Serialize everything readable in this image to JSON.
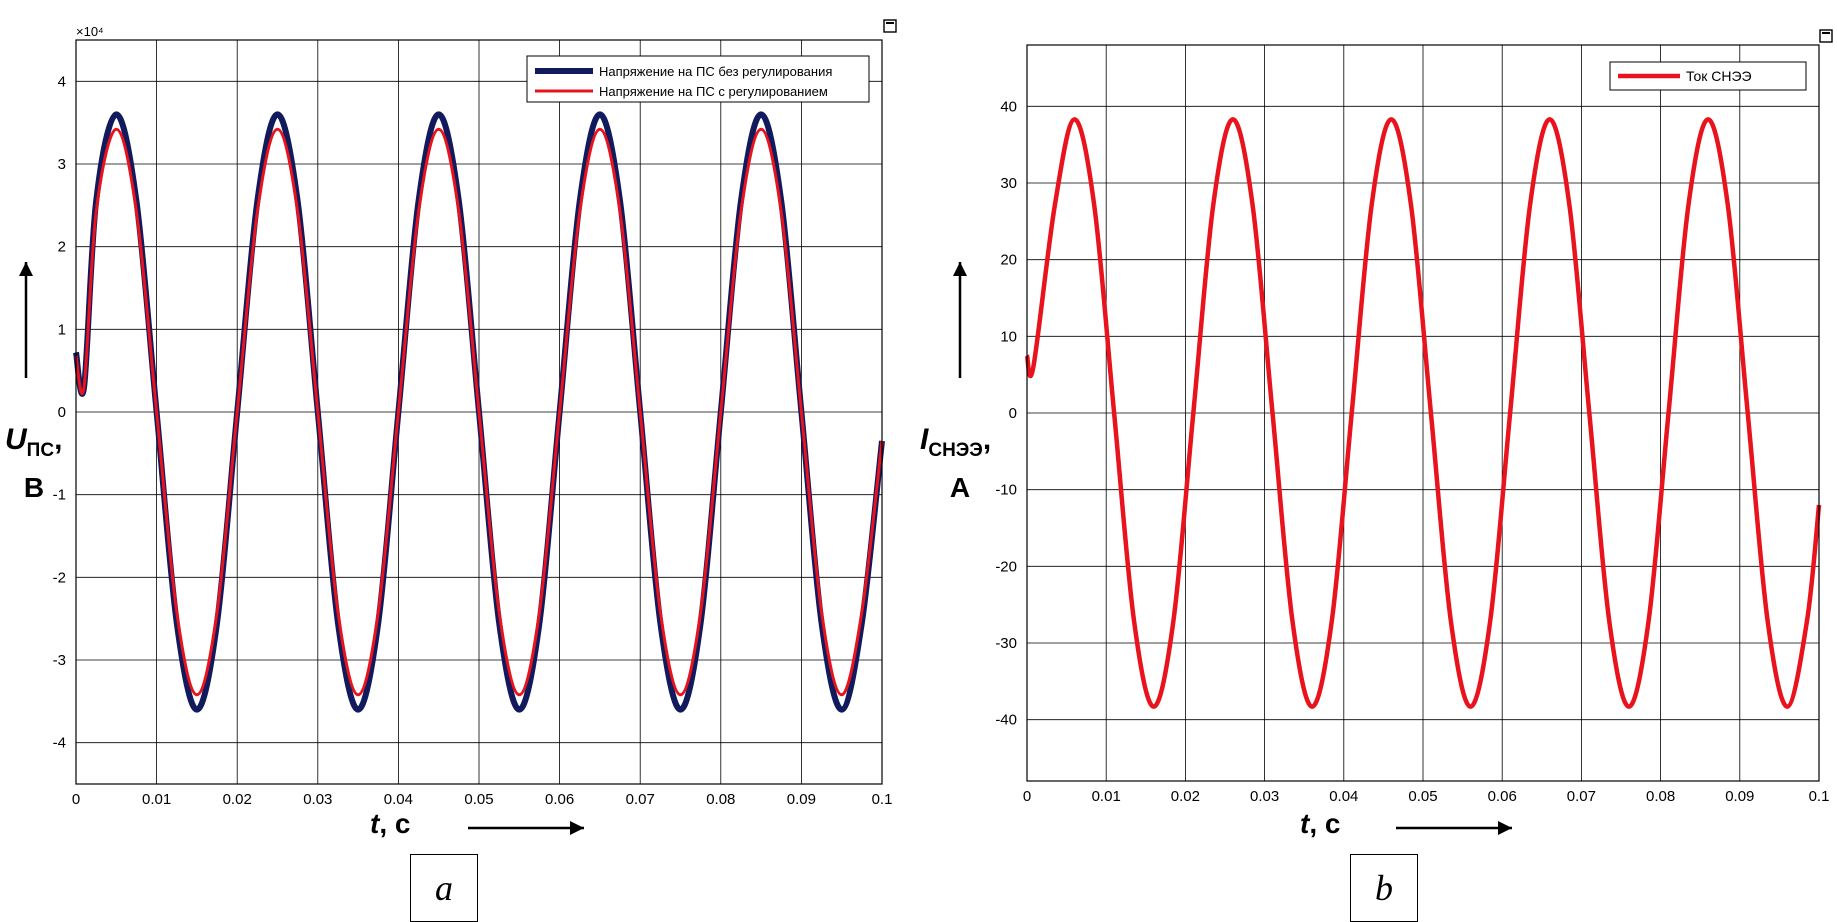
{
  "charts": [
    {
      "id": "a",
      "panel_label": "a",
      "exponent_label": "×10⁴",
      "ylabel_main": "U",
      "ylabel_sub": "ПС",
      "ylabel_tail": ",",
      "ylabel_unit": "В",
      "xlabel_var": "t",
      "xlabel_unit": ", с",
      "colors": {
        "series_0": "#101a5c",
        "series_1": "#e8131c"
      }
    },
    {
      "id": "b",
      "panel_label": "b",
      "ylabel_main": "I",
      "ylabel_sub": "СНЭЭ",
      "ylabel_tail": ",",
      "ylabel_unit": "А",
      "xlabel_var": "t",
      "xlabel_unit": ", с",
      "colors": {
        "series_0": "#e8131c"
      }
    }
  ],
  "chart_data": [
    {
      "type": "line",
      "title": "",
      "xlabel": "t, с",
      "ylabel": "UПС, В",
      "y_multiplier": "×10⁴",
      "xlim": [
        0,
        0.1
      ],
      "ylim": [
        -4.5,
        4.5
      ],
      "xticks": [
        0,
        0.01,
        0.02,
        0.03,
        0.04,
        0.05,
        0.06,
        0.07,
        0.08,
        0.09,
        0.1
      ],
      "xtick_labels": [
        "0",
        "0.01",
        "0.02",
        "0.03",
        "0.04",
        "0.05",
        "0.06",
        "0.07",
        "0.08",
        "0.09",
        "0.1"
      ],
      "yticks": [
        -4,
        -3,
        -2,
        -1,
        0,
        1,
        2,
        3,
        4
      ],
      "ytick_labels": [
        "-4",
        "-3",
        "-2",
        "-1",
        "0",
        "1",
        "2",
        "3",
        "4"
      ],
      "grid": true,
      "legend_position": "top-right",
      "series": [
        {
          "name": "Напряжение на ПС без регулирования",
          "color": "#101a5c",
          "frequency_hz": 50,
          "amplitude": 3.6,
          "peaks_x": [
            0.005,
            0.025,
            0.045,
            0.065,
            0.085
          ],
          "troughs_x": [
            0.015,
            0.035,
            0.055,
            0.075,
            0.095
          ],
          "x": [
            0,
            0.001,
            0.0025,
            0.005,
            0.0075,
            0.01,
            0.0125,
            0.015,
            0.0175,
            0.02,
            0.0225,
            0.025,
            0.0275,
            0.03,
            0.0325,
            0.035,
            0.0375,
            0.04,
            0.0425,
            0.045,
            0.0475,
            0.05,
            0.0525,
            0.055,
            0.0575,
            0.06,
            0.0625,
            0.065,
            0.0675,
            0.07,
            0.0725,
            0.075,
            0.0775,
            0.08,
            0.0825,
            0.085,
            0.0875,
            0.09,
            0.0925,
            0.095,
            0.0975,
            0.1
          ],
          "values": [
            0.72,
            0.3,
            2.55,
            3.6,
            2.55,
            0,
            -2.55,
            -3.6,
            -2.55,
            0,
            2.55,
            3.6,
            2.55,
            0,
            -2.55,
            -3.6,
            -2.55,
            0,
            2.55,
            3.6,
            2.55,
            0,
            -2.55,
            -3.6,
            -2.55,
            0,
            2.55,
            3.6,
            2.55,
            0,
            -2.55,
            -3.6,
            -2.55,
            0,
            2.55,
            3.6,
            2.55,
            0,
            -2.55,
            -3.6,
            -2.55,
            -0.35
          ]
        },
        {
          "name": "Напряжение на ПС с регулированием",
          "color": "#e8131c",
          "frequency_hz": 50,
          "amplitude": 3.42,
          "peaks_x": [
            0.005,
            0.025,
            0.045,
            0.065,
            0.085
          ],
          "troughs_x": [
            0.015,
            0.035,
            0.055,
            0.075,
            0.095
          ],
          "x": [
            0,
            0.001,
            0.0025,
            0.005,
            0.0075,
            0.01,
            0.0125,
            0.015,
            0.0175,
            0.02,
            0.0225,
            0.025,
            0.0275,
            0.03,
            0.0325,
            0.035,
            0.0375,
            0.04,
            0.0425,
            0.045,
            0.0475,
            0.05,
            0.0525,
            0.055,
            0.0575,
            0.06,
            0.0625,
            0.065,
            0.0675,
            0.07,
            0.0725,
            0.075,
            0.0775,
            0.08,
            0.0825,
            0.085,
            0.0875,
            0.09,
            0.0925,
            0.095,
            0.0975,
            0.1
          ],
          "values": [
            0.68,
            0.3,
            2.42,
            3.42,
            2.42,
            0,
            -2.42,
            -3.42,
            -2.42,
            0,
            2.42,
            3.42,
            2.42,
            0,
            -2.42,
            -3.42,
            -2.42,
            0,
            2.42,
            3.42,
            2.42,
            0,
            -2.42,
            -3.42,
            -2.42,
            0,
            2.42,
            3.42,
            2.42,
            0,
            -2.42,
            -3.42,
            -2.42,
            0,
            2.42,
            3.42,
            2.42,
            0,
            -2.42,
            -3.42,
            -2.42,
            -0.35
          ]
        }
      ]
    },
    {
      "type": "line",
      "title": "",
      "xlabel": "t, с",
      "ylabel": "IСНЭЭ, А",
      "xlim": [
        0,
        0.1
      ],
      "ylim": [
        -48,
        48
      ],
      "xticks": [
        0,
        0.01,
        0.02,
        0.03,
        0.04,
        0.05,
        0.06,
        0.07,
        0.08,
        0.09,
        0.1
      ],
      "xtick_labels": [
        "0",
        "0.01",
        "0.02",
        "0.03",
        "0.04",
        "0.05",
        "0.06",
        "0.07",
        "0.08",
        "0.09",
        "0.1"
      ],
      "yticks": [
        -40,
        -30,
        -20,
        -10,
        0,
        10,
        20,
        30,
        40
      ],
      "ytick_labels": [
        "-40",
        "-30",
        "-20",
        "-10",
        "0",
        "10",
        "20",
        "30",
        "40"
      ],
      "grid": true,
      "legend_position": "top-right",
      "series": [
        {
          "name": "Ток СНЭЭ",
          "color": "#e8131c",
          "frequency_hz": 50,
          "amplitude": 38.3,
          "peaks_x": [
            0.006,
            0.026,
            0.046,
            0.066,
            0.086
          ],
          "troughs_x": [
            0.016,
            0.036,
            0.056,
            0.076,
            0.096
          ],
          "x": [
            0,
            0.0008,
            0.0035,
            0.006,
            0.0085,
            0.011,
            0.0135,
            0.016,
            0.0185,
            0.021,
            0.0235,
            0.026,
            0.0285,
            0.031,
            0.0335,
            0.036,
            0.0385,
            0.041,
            0.0435,
            0.046,
            0.0485,
            0.051,
            0.0535,
            0.056,
            0.0585,
            0.061,
            0.0635,
            0.066,
            0.0685,
            0.071,
            0.0735,
            0.076,
            0.0785,
            0.081,
            0.0835,
            0.086,
            0.0885,
            0.091,
            0.0935,
            0.096,
            0.0985,
            0.1
          ],
          "values": [
            7.5,
            6,
            27,
            38.3,
            27,
            0,
            -27,
            -38.3,
            -27,
            0,
            27,
            38.3,
            27,
            0,
            -27,
            -38.3,
            -27,
            0,
            27,
            38.3,
            27,
            0,
            -27,
            -38.3,
            -27,
            0,
            27,
            38.3,
            27,
            0,
            -27,
            -38.3,
            -27,
            0,
            27,
            38.3,
            27,
            0,
            -27,
            -38.3,
            -27,
            -12
          ]
        }
      ]
    }
  ]
}
